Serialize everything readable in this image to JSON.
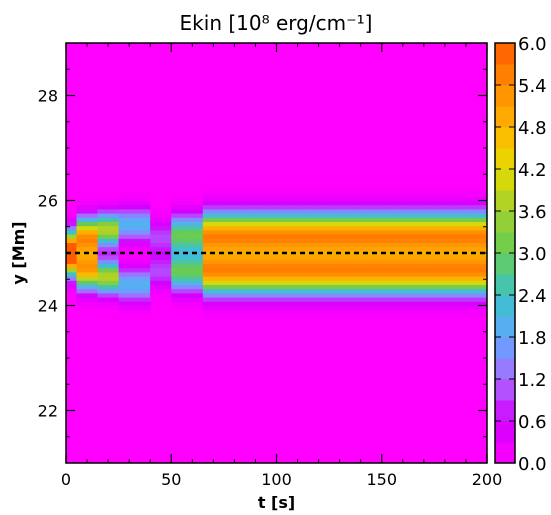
{
  "chart_data": {
    "type": "heatmap",
    "title": "Ekin [10⁸ erg/cm⁻¹]",
    "xlabel": "t [s]",
    "ylabel": "y [Mm]",
    "xlim": [
      0,
      200
    ],
    "ylim": [
      21,
      29
    ],
    "xticks": [
      0,
      50,
      100,
      150,
      200
    ],
    "yticks": [
      22,
      24,
      26,
      28
    ],
    "colorbar": {
      "range": [
        0,
        6
      ],
      "ticks": [
        "0.0",
        "0.6",
        "1.2",
        "1.8",
        "2.4",
        "3.0",
        "3.6",
        "4.2",
        "4.8",
        "5.4",
        "6.0"
      ],
      "colors": [
        "#ff00ff",
        "#d200ff",
        "#a86cff",
        "#5fa8ff",
        "#3cc3c8",
        "#66cc55",
        "#a0d030",
        "#e6dc00",
        "#ffb400",
        "#ff8c00",
        "#ff5a00"
      ]
    },
    "reference_line": {
      "y": 25.0,
      "style": "dashed",
      "color": "#000000"
    },
    "background_value": 0.0,
    "bands": [
      {
        "name": "upper",
        "phases": [
          {
            "t": [
              0,
              5
            ],
            "y_center": 25.15,
            "width": 0.3,
            "peak": 4.5
          },
          {
            "t": [
              5,
              15
            ],
            "y_center": 25.3,
            "width": 0.35,
            "peak": 5.2
          },
          {
            "t": [
              15,
              25
            ],
            "y_center": 25.45,
            "width": 0.3,
            "peak": 3.8
          },
          {
            "t": [
              25,
              38
            ],
            "y_center": 25.55,
            "width": 0.3,
            "peak": 2.0
          },
          {
            "t": [
              38,
              50
            ],
            "y_center": 25.3,
            "width": 0.3,
            "peak": 1.0
          },
          {
            "t": [
              50,
              65
            ],
            "y_center": 25.35,
            "width": 0.35,
            "peak": 3.0
          },
          {
            "t": [
              65,
              200
            ],
            "y_center": 25.35,
            "width": 0.4,
            "peak": 5.3
          }
        ]
      },
      {
        "name": "lower",
        "phases": [
          {
            "t": [
              0,
              5
            ],
            "y_center": 24.85,
            "width": 0.3,
            "peak": 4.5
          },
          {
            "t": [
              5,
              15
            ],
            "y_center": 24.7,
            "width": 0.35,
            "peak": 5.0
          },
          {
            "t": [
              15,
              25
            ],
            "y_center": 24.55,
            "width": 0.3,
            "peak": 3.8
          },
          {
            "t": [
              25,
              38
            ],
            "y_center": 24.4,
            "width": 0.3,
            "peak": 2.0
          },
          {
            "t": [
              38,
              50
            ],
            "y_center": 24.65,
            "width": 0.3,
            "peak": 1.0
          },
          {
            "t": [
              50,
              65
            ],
            "y_center": 24.65,
            "width": 0.35,
            "peak": 3.0
          },
          {
            "t": [
              65,
              200
            ],
            "y_center": 24.65,
            "width": 0.4,
            "peak": 5.3
          }
        ]
      }
    ]
  }
}
